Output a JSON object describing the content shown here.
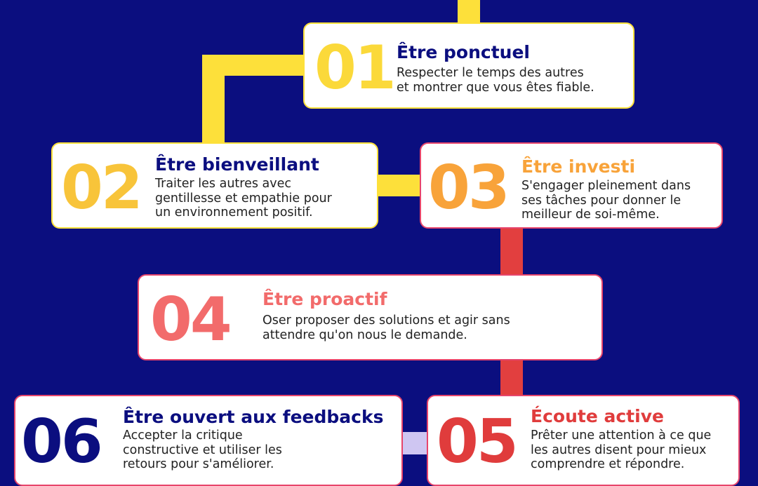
{
  "steps": [
    {
      "number": "01",
      "title": "Être ponctuel",
      "description": [
        "Respecter le temps des autres",
        "et montrer que vous êtes fiable."
      ]
    },
    {
      "number": "02",
      "title": "Être bienveillant",
      "description": [
        "Traiter les autres avec",
        "gentillesse et empathie pour",
        "un environnement positif."
      ]
    },
    {
      "number": "03",
      "title": "Être investi",
      "description": [
        "S'engager pleinement dans",
        "ses tâches pour donner le",
        "meilleur de soi-même."
      ]
    },
    {
      "number": "04",
      "title": "Être proactif",
      "description": [
        "Oser proposer des solutions et agir sans",
        "attendre qu'on nous le demande."
      ]
    },
    {
      "number": "05",
      "title": "Écoute active",
      "description": [
        "Prêter une attention à ce que",
        "les autres disent pour mieux",
        "comprendre et répondre."
      ]
    },
    {
      "number": "06",
      "title": "Être ouvert aux feedbacks",
      "description": [
        "Accepter la critique",
        "constructive et utiliser les",
        "retours pour s'améliorer."
      ]
    }
  ]
}
